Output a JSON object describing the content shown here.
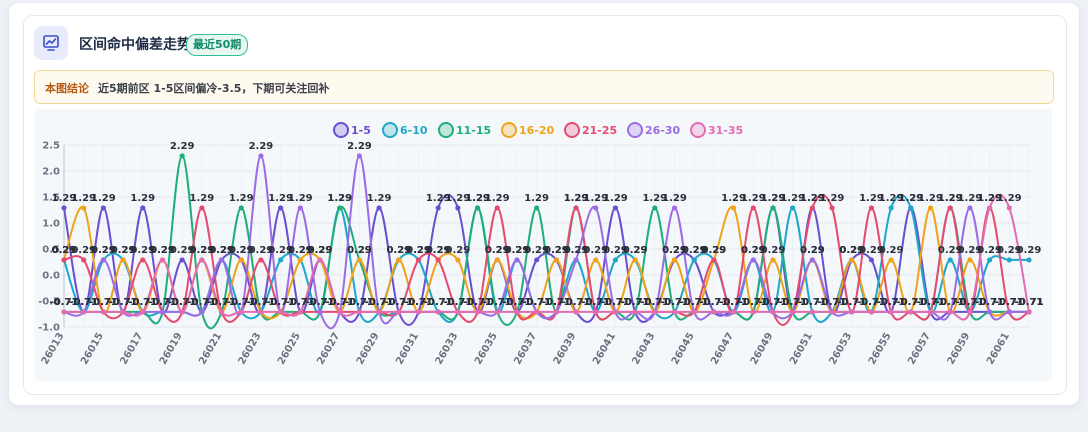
{
  "header": {
    "title": "区间命中偏差走势",
    "badge": "最近50期",
    "icon": "chart-trend-icon"
  },
  "conclusion": {
    "label": "本图结论",
    "text": "近5期前区 1-5区间偏冷-3.5，下期可关注回补"
  },
  "colors": {
    "1-5": "#6a4fd1",
    "6-10": "#1ea7c9",
    "11-15": "#1fae7a",
    "16-20": "#f0a21a",
    "21-25": "#e54b6e",
    "26-30": "#9b6ce6",
    "31-35": "#e36bb1"
  },
  "chart_data": {
    "type": "line",
    "title": "",
    "xlabel": "",
    "ylabel": "",
    "ylim": [
      -1.0,
      2.5
    ],
    "yticks": [
      "-1.0",
      "-0.5",
      "0.0",
      "0.5",
      "1.0",
      "1.5",
      "2.0",
      "2.5"
    ],
    "ytick_values": [
      -1.0,
      -0.5,
      0.0,
      0.5,
      1.0,
      1.5,
      2.0,
      2.5
    ],
    "grid": true,
    "legend_position": "top",
    "x": [
      "26013",
      "26014",
      "26015",
      "26016",
      "26017",
      "26018",
      "26019",
      "26020",
      "26021",
      "26022",
      "26023",
      "26024",
      "26025",
      "26026",
      "26027",
      "26028",
      "26029",
      "26030",
      "26031",
      "26032",
      "26033",
      "26034",
      "26035",
      "26036",
      "26037",
      "26038",
      "26039",
      "26040",
      "26041",
      "26042",
      "26043",
      "26044",
      "26045",
      "26046",
      "26047",
      "26048",
      "26049",
      "26050",
      "26051",
      "26052",
      "26053",
      "26054",
      "26055",
      "26056",
      "26057",
      "26058",
      "26059",
      "26060",
      "26061",
      "26062"
    ],
    "x_tick_labels": [
      "26013",
      "26015",
      "26017",
      "26019",
      "26021",
      "26023",
      "26025",
      "26027",
      "26029",
      "26031",
      "26033",
      "26035",
      "26037",
      "26039",
      "26041",
      "26043",
      "26045",
      "26047",
      "26049",
      "26051",
      "26053",
      "26055",
      "26057",
      "26059",
      "26061"
    ],
    "series": [
      {
        "name": "1-5",
        "values": [
          1.29,
          -0.71,
          1.29,
          -0.71,
          1.29,
          -0.71,
          0.29,
          -0.71,
          0.29,
          0.29,
          -0.71,
          1.29,
          -0.71,
          0.29,
          -0.71,
          -0.71,
          1.29,
          -0.71,
          -0.71,
          1.29,
          1.29,
          -0.71,
          0.29,
          -0.71,
          0.29,
          0.29,
          -0.71,
          -0.71,
          1.29,
          -0.71,
          -0.71,
          0.29,
          0.29,
          -0.71,
          -0.71,
          -0.71,
          1.29,
          -0.71,
          1.29,
          -0.71,
          0.29,
          0.29,
          -0.71,
          1.29,
          -0.71,
          -0.71,
          -0.71,
          -0.71,
          -0.71,
          -0.71
        ]
      },
      {
        "name": "6-10",
        "values": [
          0.29,
          -0.71,
          0.29,
          0.29,
          -0.71,
          -0.71,
          -0.71,
          -0.71,
          0.29,
          -0.71,
          -0.71,
          0.29,
          0.29,
          -0.71,
          1.29,
          -0.71,
          -0.71,
          0.29,
          0.29,
          -0.71,
          -0.71,
          1.29,
          -0.71,
          0.29,
          -0.71,
          -0.71,
          0.29,
          -0.71,
          0.29,
          0.29,
          -0.71,
          -0.71,
          0.29,
          0.29,
          -0.71,
          0.29,
          -0.71,
          1.29,
          -0.71,
          -0.71,
          0.29,
          -0.71,
          1.29,
          1.29,
          -0.71,
          0.29,
          -0.71,
          0.29,
          0.29,
          0.29
        ]
      },
      {
        "name": "11-15",
        "values": [
          -0.71,
          -0.71,
          -0.71,
          -0.71,
          -0.71,
          -0.71,
          2.29,
          -0.71,
          -0.71,
          1.29,
          -0.71,
          -0.71,
          -0.71,
          -0.71,
          1.29,
          0.29,
          -0.71,
          -0.71,
          -0.71,
          -0.71,
          -0.71,
          1.29,
          -0.71,
          -0.71,
          1.29,
          -0.71,
          1.29,
          -0.71,
          -0.71,
          -0.71,
          1.29,
          -0.71,
          -0.71,
          -0.71,
          -0.71,
          -0.71,
          1.29,
          -0.71,
          -0.71,
          -0.71,
          -0.71,
          -0.71,
          -0.71,
          -0.71,
          -0.71,
          1.29,
          -0.71,
          -0.71,
          -0.71,
          -0.71
        ]
      },
      {
        "name": "16-20",
        "values": [
          0.29,
          1.29,
          -0.71,
          0.29,
          -0.71,
          0.29,
          -0.71,
          0.29,
          -0.71,
          0.29,
          -0.71,
          -0.71,
          0.29,
          0.29,
          -0.71,
          0.29,
          -0.71,
          0.29,
          -0.71,
          0.29,
          0.29,
          -0.71,
          0.29,
          -0.71,
          -0.71,
          0.29,
          -0.71,
          0.29,
          -0.71,
          0.29,
          -0.71,
          0.29,
          -0.71,
          0.29,
          1.29,
          -0.71,
          0.29,
          -0.71,
          0.29,
          -0.71,
          0.29,
          -0.71,
          0.29,
          -0.71,
          1.29,
          -0.71,
          0.29,
          -0.71,
          -0.71,
          -0.71
        ]
      },
      {
        "name": "21-25",
        "values": [
          0.29,
          0.29,
          -0.71,
          -0.71,
          0.29,
          -0.71,
          -0.71,
          1.29,
          -0.71,
          -0.71,
          0.29,
          -0.71,
          -0.71,
          -0.71,
          -0.71,
          -0.71,
          -0.71,
          -0.71,
          0.29,
          0.29,
          -0.71,
          -0.71,
          1.29,
          -0.71,
          -0.71,
          -0.71,
          1.29,
          -0.71,
          -0.71,
          -0.71,
          -0.71,
          -0.71,
          -0.71,
          0.29,
          -0.71,
          1.29,
          -0.71,
          -0.71,
          1.29,
          1.29,
          -0.71,
          1.29,
          -0.71,
          -0.71,
          -0.71,
          1.29,
          -0.71,
          1.29,
          -0.71,
          -0.71
        ]
      },
      {
        "name": "26-30",
        "values": [
          -0.71,
          -0.71,
          0.29,
          -0.71,
          -0.71,
          -0.71,
          -0.71,
          -0.71,
          0.29,
          -0.71,
          2.29,
          -0.71,
          1.29,
          -0.71,
          -0.71,
          2.29,
          -0.71,
          -0.71,
          -0.71,
          -0.71,
          -0.71,
          -0.71,
          -0.71,
          0.29,
          -0.71,
          -0.71,
          0.29,
          1.29,
          -0.71,
          -0.71,
          -0.71,
          1.29,
          -0.71,
          -0.71,
          -0.71,
          0.29,
          -0.71,
          -0.71,
          0.29,
          -0.71,
          -0.71,
          -0.71,
          -0.71,
          -0.71,
          -0.71,
          -0.71,
          1.29,
          -0.71,
          -0.71,
          -0.71
        ]
      },
      {
        "name": "31-35",
        "values": [
          -0.71,
          -0.71,
          -0.71,
          -0.71,
          -0.71,
          0.29,
          -0.71,
          0.29,
          -0.71,
          -0.71,
          -0.71,
          -0.71,
          -0.71,
          0.29,
          -0.71,
          -0.71,
          -0.71,
          -0.71,
          -0.71,
          -0.71,
          -0.71,
          -0.71,
          -0.71,
          -0.71,
          -0.71,
          -0.71,
          -0.71,
          -0.71,
          -0.71,
          -0.71,
          -0.71,
          -0.71,
          -0.71,
          -0.71,
          -0.71,
          -0.71,
          -0.71,
          -0.71,
          -0.71,
          -0.71,
          -0.71,
          -0.71,
          -0.71,
          -0.71,
          -0.71,
          -0.71,
          -0.71,
          1.29,
          1.29,
          -0.71
        ]
      }
    ]
  }
}
